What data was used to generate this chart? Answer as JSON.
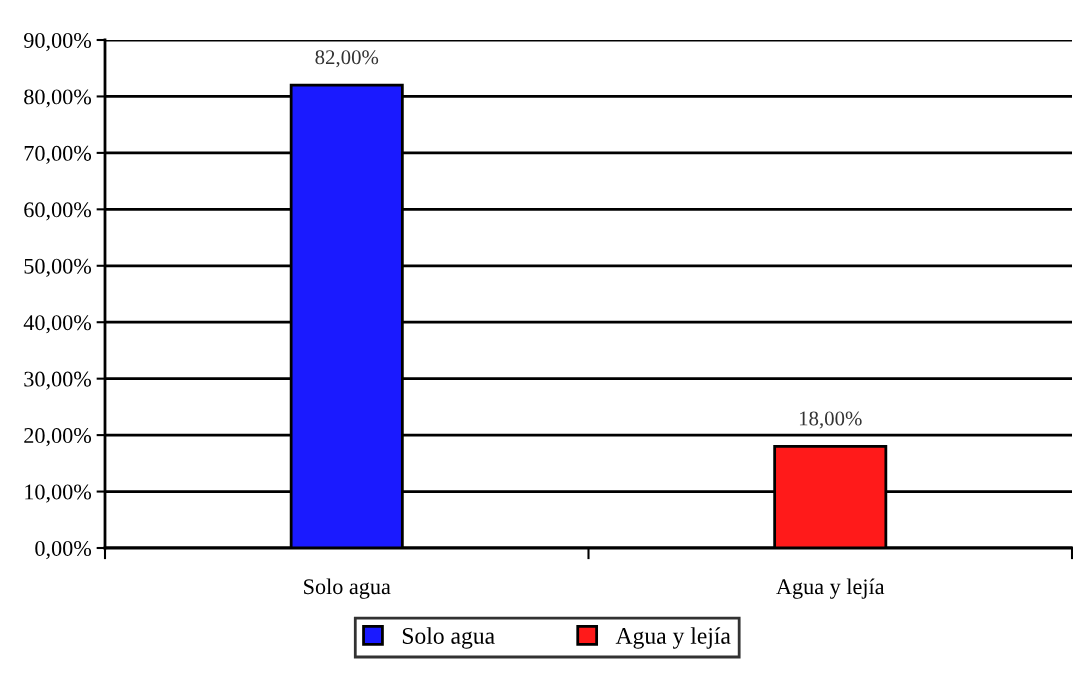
{
  "chart_data": {
    "type": "bar",
    "categories": [
      "Solo agua",
      "Agua y lejía"
    ],
    "series": [
      {
        "name": "Solo agua",
        "color": "#1a1aff",
        "values": [
          82,
          null
        ],
        "value_labels": [
          "82,00%",
          null
        ]
      },
      {
        "name": "Agua y lejía",
        "color": "#ff1a1a",
        "values": [
          null,
          18
        ],
        "value_labels": [
          null,
          "18,00%"
        ]
      }
    ],
    "ylim": [
      0,
      90
    ],
    "yticks": [
      {
        "value": 0,
        "label": "0,00%"
      },
      {
        "value": 10,
        "label": "10,00%"
      },
      {
        "value": 20,
        "label": "20,00%"
      },
      {
        "value": 30,
        "label": "30,00%"
      },
      {
        "value": 40,
        "label": "40,00%"
      },
      {
        "value": 50,
        "label": "50,00%"
      },
      {
        "value": 60,
        "label": "60,00%"
      },
      {
        "value": 70,
        "label": "70,00%"
      },
      {
        "value": 80,
        "label": "80,00%"
      },
      {
        "value": 90,
        "label": "90,00%"
      }
    ],
    "grid": "y",
    "legend": "bottom"
  }
}
